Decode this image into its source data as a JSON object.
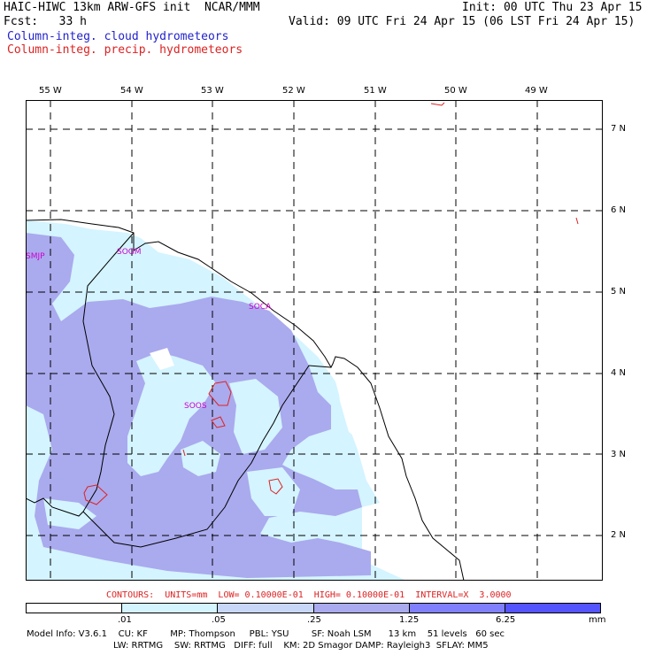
{
  "header": {
    "title": "HAIC-HIWC 13km ARW-GFS init  NCAR/MMM",
    "init": "Init: 00 UTC Thu 23 Apr 15",
    "fcst": "Fcst:   33 h",
    "valid": "Valid: 09 UTC Fri 24 Apr 15 (06 LST Fri 24 Apr 15)",
    "field1": "Column-integ. cloud hydrometeors",
    "field2": "Column-integ. precip. hydrometeors"
  },
  "map": {
    "lon_labels": [
      "55 W",
      "54 W",
      "53 W",
      "52 W",
      "51 W",
      "50 W",
      "49 W"
    ],
    "lat_labels": [
      "7 N",
      "6 N",
      "5 N",
      "4 N",
      "3 N",
      "2 N"
    ],
    "stations": [
      "SMJP",
      "SOGM",
      "SOCA",
      "SOOS"
    ],
    "colors": {
      "light": "#d4f4ff",
      "medium": "#aaaaee",
      "contour": "#dd2222",
      "coast": "#000000",
      "station": "#cc00cc"
    }
  },
  "contours_text": "CONTOURS:  UNITS=mm  LOW= 0.10000E-01  HIGH= 0.10000E-01  INTERVAL=X  3.0000",
  "colorbar": {
    "colors": [
      "#ffffff",
      "#d4f4ff",
      "#c8d6f8",
      "#aaaaee",
      "#8080ff",
      "#5555ff",
      "#1111ee"
    ],
    "labels": [
      ".01",
      ".05",
      ".25",
      "1.25",
      "6.25"
    ],
    "units": "mm"
  },
  "model_info": {
    "line1": "Model Info: V3.6.1    CU: KF        MP: Thompson     PBL: YSU        SF: Noah LSM      13 km    51 levels   60 sec",
    "line2": "LW: RRTMG    SW: RRTMG   DIFF: full    KM: 2D Smagor DAMP: Rayleigh3  SFLAY: MM5"
  }
}
